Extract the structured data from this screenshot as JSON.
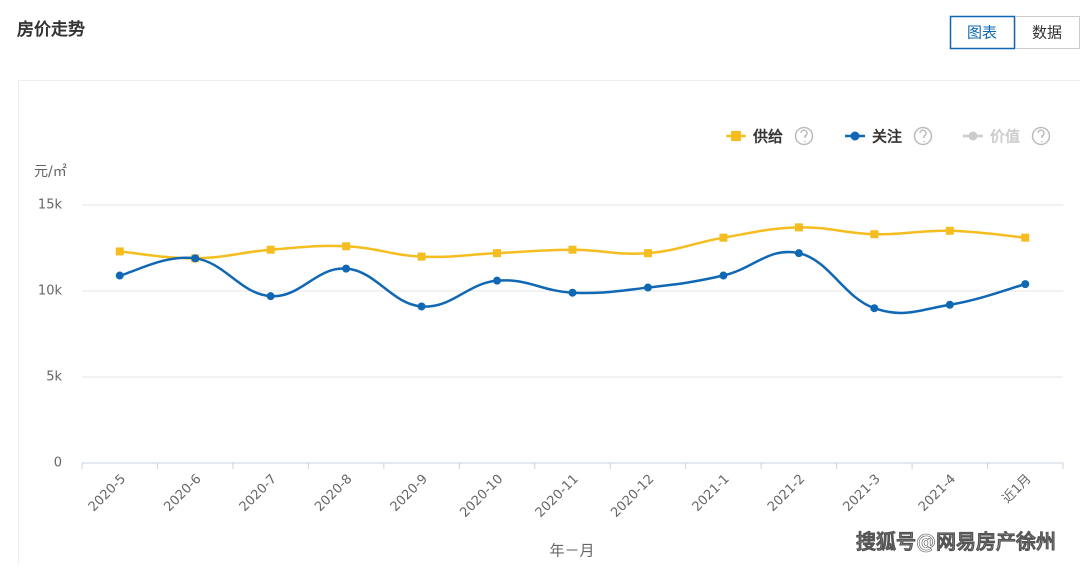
{
  "page_title": "房价走势",
  "buttons": [
    "图表",
    "数据"
  ],
  "watermark": "搜狐号@网易房产徐州",
  "chart_data": {
    "type": "line",
    "y_label": "元/㎡",
    "x_label": "年－月",
    "categories": [
      "2020-5",
      "2020-6",
      "2020-7",
      "2020-8",
      "2020-9",
      "2020-10",
      "2020-11",
      "2020-12",
      "2021-1",
      "2021-2",
      "2021-3",
      "2021-4",
      "近1月"
    ],
    "series": [
      {
        "name": "供给",
        "color": "#f5bd1f",
        "marker": "square",
        "values": [
          12300,
          11900,
          12400,
          12600,
          12000,
          12200,
          12400,
          12200,
          13100,
          13700,
          13300,
          13500,
          13100
        ]
      },
      {
        "name": "关注",
        "color": "#1067b4",
        "marker": "circle",
        "values": [
          10900,
          11900,
          9700,
          11300,
          9100,
          10600,
          9900,
          10200,
          10900,
          12200,
          9000,
          9200,
          10400
        ]
      },
      {
        "name": "价值",
        "color": "#cccccc",
        "marker": "circle",
        "visible": false,
        "values": [
          null,
          null,
          null,
          null,
          null,
          null,
          null,
          null,
          null,
          null,
          null,
          null,
          null
        ]
      }
    ],
    "ylim": [
      0,
      15000
    ],
    "yticks": [
      0,
      {
        "value": 5000,
        "label": "5k"
      },
      {
        "value": 10000,
        "label": "10k"
      },
      {
        "value": 15000,
        "label": "15k"
      }
    ],
    "grid": true,
    "smooth": true
  }
}
